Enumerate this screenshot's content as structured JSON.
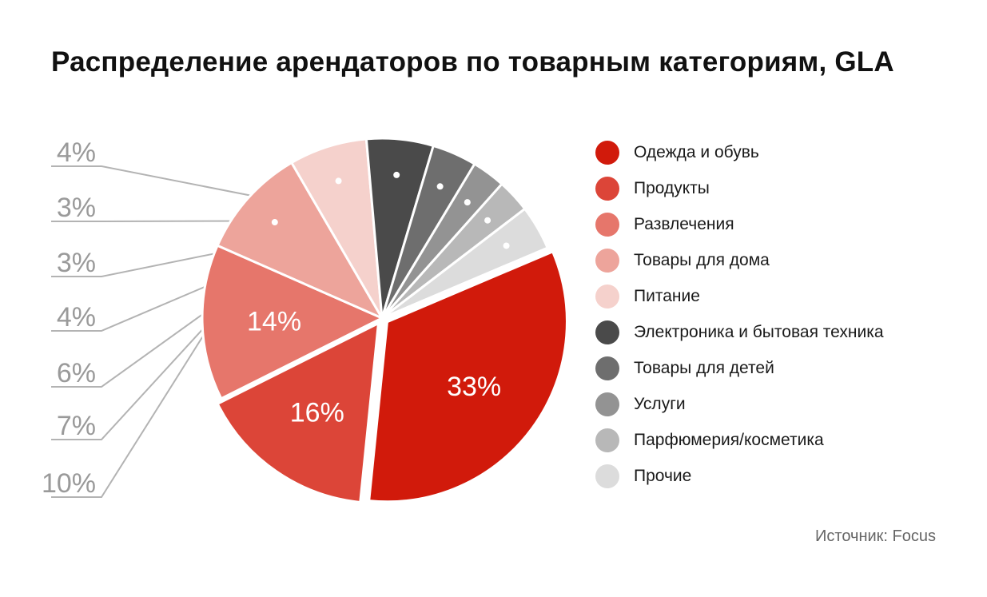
{
  "chart_data": {
    "type": "pie",
    "title": "Распределение арендаторов по товарным категориям, GLA",
    "slices": [
      {
        "label": "Одежда и обувь",
        "value": 33,
        "value_label": "33%",
        "color": "#d11a0b"
      },
      {
        "label": "Продукты",
        "value": 16,
        "value_label": "16%",
        "color": "#dc4538"
      },
      {
        "label": "Развлечения",
        "value": 14,
        "value_label": "14%",
        "color": "#e6766b"
      },
      {
        "label": "Товары для дома",
        "value": 10,
        "value_label": "10%",
        "color": "#eda49b"
      },
      {
        "label": "Питание",
        "value": 7,
        "value_label": "7%",
        "color": "#f5d1cc"
      },
      {
        "label": "Электроника и бытовая техника",
        "value": 6,
        "value_label": "6%",
        "color": "#4a4a4a"
      },
      {
        "label": "Товары для детей",
        "value": 4,
        "value_label": "4%",
        "color": "#6e6e6e"
      },
      {
        "label": "Услуги",
        "value": 3,
        "value_label": "3%",
        "color": "#939393"
      },
      {
        "label": "Парфюмерия/косметика",
        "value": 3,
        "value_label": "3%",
        "color": "#b8b8b8"
      },
      {
        "label": "Прочие",
        "value": 4,
        "value_label": "4%",
        "color": "#dcdcdc"
      }
    ],
    "legend_position": "right"
  },
  "source": "Источник: Focus"
}
